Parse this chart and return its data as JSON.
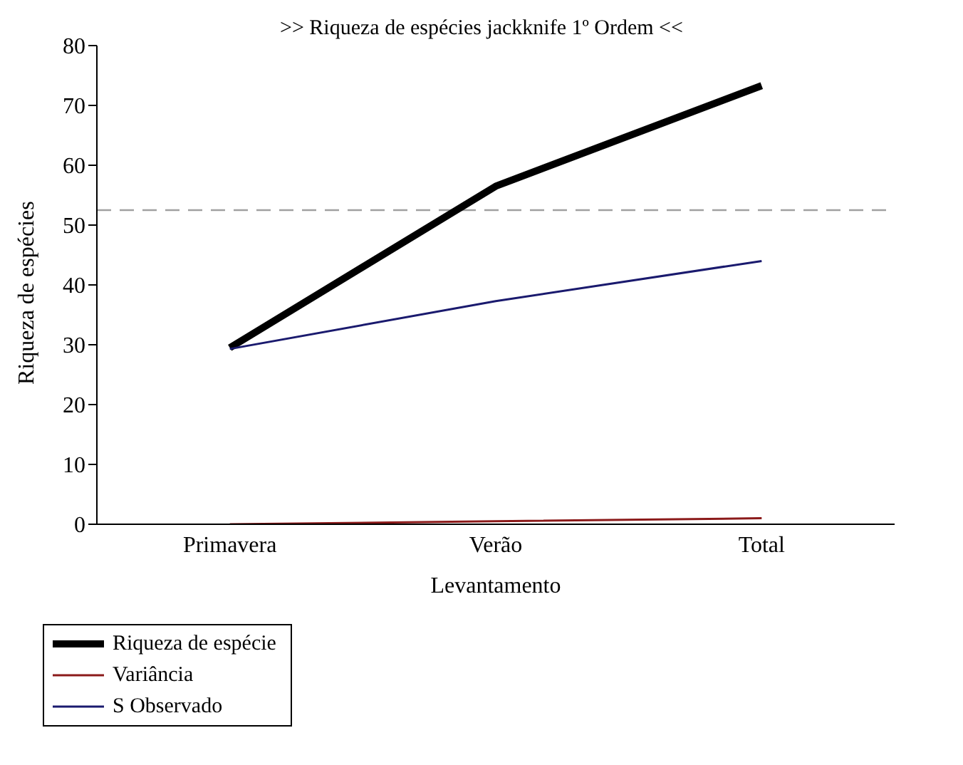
{
  "chart_data": {
    "type": "line",
    "title": ">> Riqueza de espécies jackknife 1º Ordem <<",
    "xlabel": "Levantamento",
    "ylabel": "Riqueza de espécies",
    "categories": [
      "Primavera",
      "Verão",
      "Total"
    ],
    "series": [
      {
        "name": "Riqueza de espécie",
        "color": "#000000",
        "values": [
          29.5,
          56.5,
          73.3
        ]
      },
      {
        "name": "Variância",
        "color": "#8b1a1a",
        "values": [
          0,
          0.5,
          1
        ]
      },
      {
        "name": "S Observado",
        "color": "#1a1a6e",
        "values": [
          29.3,
          37.3,
          44
        ]
      }
    ],
    "ref_lines": [
      {
        "axis": "y",
        "value": 52.5,
        "color": "#a0a0a0",
        "line_style": "dashed"
      }
    ],
    "ylim": [
      0,
      80
    ],
    "yticks": [
      0,
      10,
      20,
      30,
      40,
      50,
      60,
      70,
      80
    ],
    "grid": false,
    "legend": "bottom left",
    "marker": "none",
    "line_style": "solid"
  }
}
